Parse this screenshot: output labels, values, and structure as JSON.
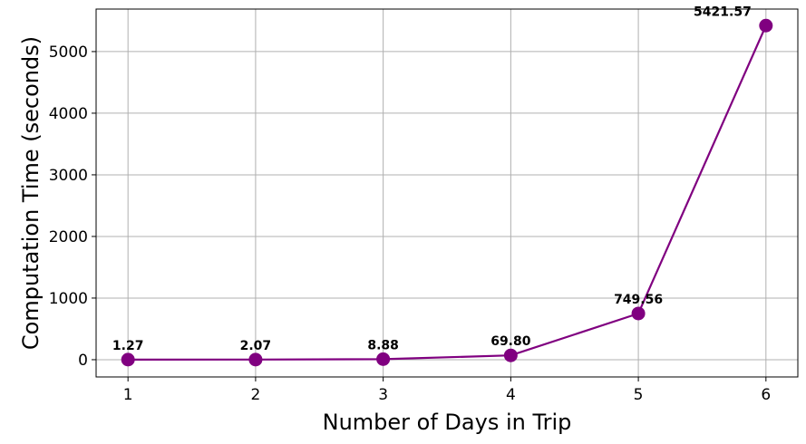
{
  "chart_data": {
    "type": "line",
    "title": "",
    "xlabel": "Number of Days in Trip",
    "ylabel": "Computation Time (seconds)",
    "x": [
      1,
      2,
      3,
      4,
      5,
      6
    ],
    "series": [
      {
        "values": [
          1.27,
          2.07,
          8.88,
          69.8,
          749.56,
          5421.57
        ],
        "labels": [
          "1.27",
          "2.07",
          "8.88",
          "69.80",
          "749.56",
          "5421.57"
        ],
        "color": "#800080"
      }
    ],
    "xlim": [
      0.75,
      6.25
    ],
    "ylim": [
      -280,
      5690
    ],
    "xticks": [
      1,
      2,
      3,
      4,
      5,
      6
    ],
    "yticks": [
      0,
      1000,
      2000,
      3000,
      4000,
      5000
    ],
    "grid": true,
    "legend": "none"
  }
}
